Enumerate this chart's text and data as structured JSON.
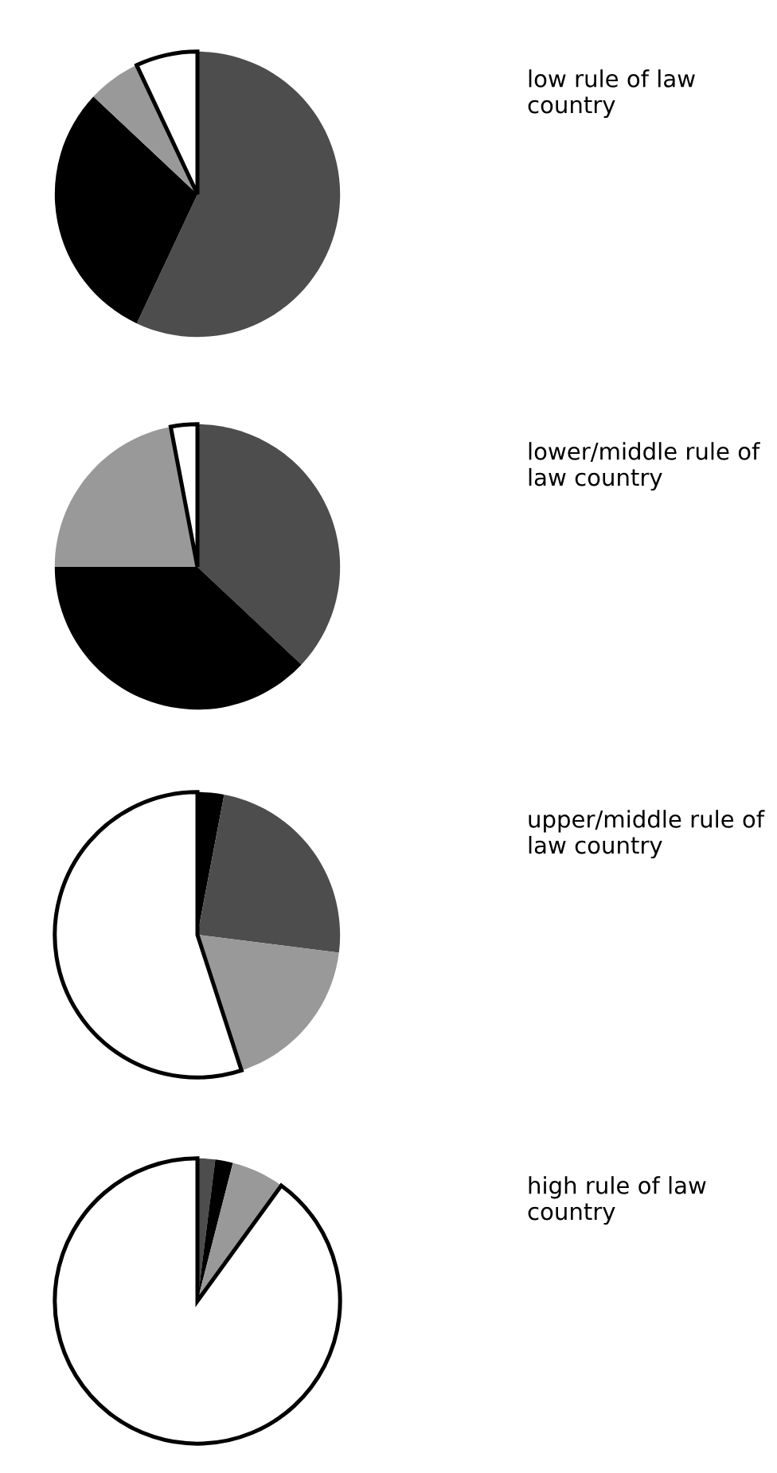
{
  "chart_data": [
    {
      "type": "pie",
      "title": "low rule of law country",
      "categories": [
        null,
        null,
        null,
        null
      ],
      "values": [
        57,
        30,
        6,
        7
      ],
      "colors": [
        "#4d4d4d",
        "#000000",
        "#999999",
        "#ffffff"
      ]
    },
    {
      "type": "pie",
      "title": "lower/middle rule of law country",
      "categories": [
        null,
        null,
        null,
        null
      ],
      "values": [
        37,
        38,
        22,
        3
      ],
      "colors": [
        "#4d4d4d",
        "#000000",
        "#999999",
        "#ffffff"
      ]
    },
    {
      "type": "pie",
      "title": "upper/middle rule of law country",
      "categories": [
        null,
        null,
        null,
        null
      ],
      "values": [
        3,
        24,
        18,
        55
      ],
      "colors": [
        "#000000",
        "#4d4d4d",
        "#999999",
        "#ffffff"
      ]
    },
    {
      "type": "pie",
      "title": "high rule of law country",
      "categories": [
        null,
        null,
        null,
        null
      ],
      "values": [
        2,
        2,
        6,
        90
      ],
      "colors": [
        "#4d4d4d",
        "#000000",
        "#999999",
        "#ffffff"
      ]
    }
  ]
}
